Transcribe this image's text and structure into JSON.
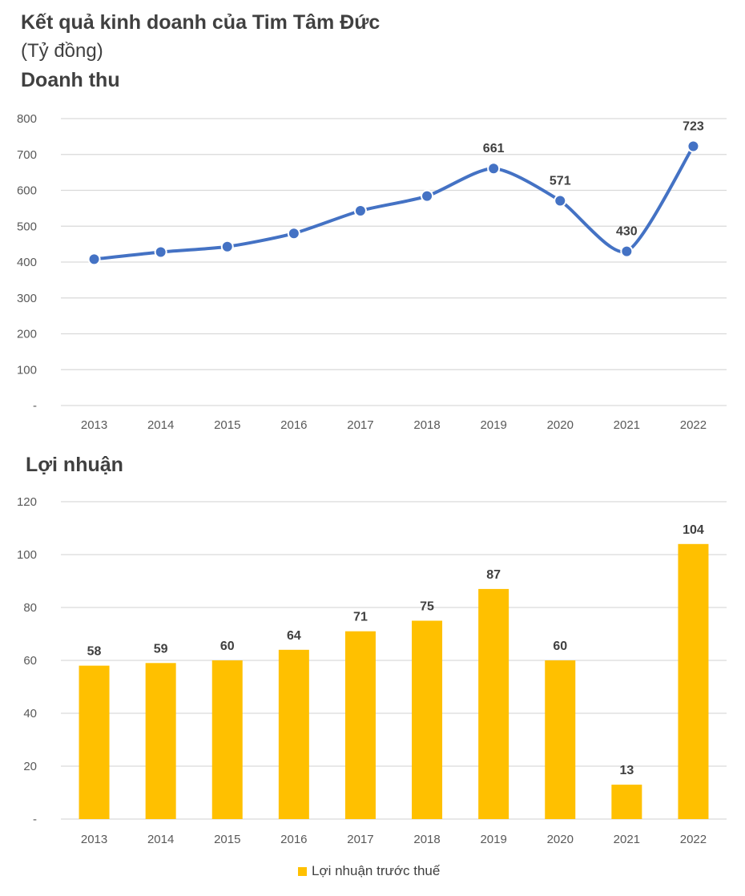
{
  "title": "Kết quả kinh doanh của Tim Tâm Đức",
  "unit": "(Tỷ đồng)",
  "colors": {
    "revenue": "#4472C4",
    "profit": "#FFC000",
    "grid": "#D9D9D9"
  },
  "chart_data": [
    {
      "type": "line",
      "title": "Doanh thu",
      "categories": [
        "2013",
        "2014",
        "2015",
        "2016",
        "2017",
        "2018",
        "2019",
        "2020",
        "2021",
        "2022"
      ],
      "series": [
        {
          "name": "Doanh thu",
          "values": [
            408,
            428,
            443,
            480,
            543,
            584,
            661,
            571,
            430,
            723
          ],
          "data_labels": [
            null,
            null,
            null,
            null,
            null,
            null,
            "661",
            "571",
            "430",
            "723"
          ]
        }
      ],
      "ylim": [
        0,
        800
      ],
      "yticks": [
        0,
        100,
        200,
        300,
        400,
        500,
        600,
        700,
        800
      ],
      "ytick_labels": [
        "-",
        "100",
        "200",
        "300",
        "400",
        "500",
        "600",
        "700",
        "800"
      ],
      "grid": true
    },
    {
      "type": "bar",
      "title": "Lợi nhuận",
      "categories": [
        "2013",
        "2014",
        "2015",
        "2016",
        "2017",
        "2018",
        "2019",
        "2020",
        "2021",
        "2022"
      ],
      "series": [
        {
          "name": "Lợi nhuận trước thuế",
          "values": [
            58,
            59,
            60,
            64,
            71,
            75,
            87,
            60,
            13,
            104
          ]
        }
      ],
      "ylim": [
        0,
        120
      ],
      "yticks": [
        0,
        20,
        40,
        60,
        80,
        100,
        120
      ],
      "ytick_labels": [
        "-",
        "20",
        "40",
        "60",
        "80",
        "100",
        "120"
      ],
      "grid": true,
      "legend": "bottom-center"
    }
  ]
}
